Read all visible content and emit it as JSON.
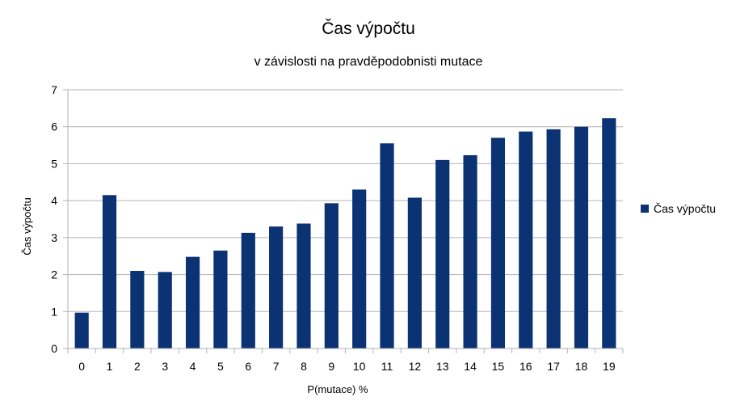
{
  "chart_data": {
    "type": "bar",
    "title": "Čas výpočtu",
    "subtitle": "v závislosti na pravděpodobnisti mutace",
    "xlabel": "P(mutace) %",
    "ylabel": "Čas výpočtu",
    "ylim": [
      0,
      7
    ],
    "yticks": [
      "0",
      "1",
      "2",
      "3",
      "4",
      "5",
      "6",
      "7"
    ],
    "grid": true,
    "legend_position": "right",
    "categories": [
      "0",
      "1",
      "2",
      "3",
      "4",
      "5",
      "6",
      "7",
      "8",
      "9",
      "10",
      "11",
      "12",
      "13",
      "14",
      "15",
      "16",
      "17",
      "18",
      "19"
    ],
    "series": [
      {
        "name": "Čas výpočtu",
        "color": "#0b3273",
        "values": [
          0.97,
          4.15,
          2.1,
          2.07,
          2.48,
          2.65,
          3.13,
          3.3,
          3.38,
          3.93,
          4.3,
          5.55,
          4.08,
          5.1,
          5.23,
          5.7,
          5.87,
          5.93,
          6.0,
          6.23
        ]
      }
    ]
  }
}
